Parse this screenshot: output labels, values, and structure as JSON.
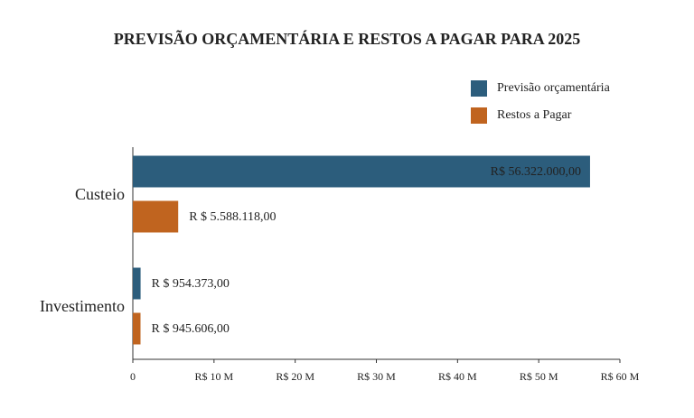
{
  "chart_data": {
    "type": "hbar",
    "title": "PREVISÃO ORÇAMENTÁRIA E RESTOS A PAGAR PARA 2025",
    "categories": [
      "Custeio",
      "Investimento"
    ],
    "series": [
      {
        "name": "Previsão orçamentária",
        "color": "#2c5d7c",
        "values": [
          56322000,
          954373
        ],
        "value_labels": [
          "R$ 56.322.000,00",
          "R $ 954.373,00"
        ]
      },
      {
        "name": "Restos a Pagar",
        "color": "#c0641f",
        "values": [
          5588118,
          945606
        ],
        "value_labels": [
          "R $ 5.588.118,00",
          "R $ 945.606,00"
        ]
      }
    ],
    "xlim": [
      0,
      60000000
    ],
    "xticks": [
      0,
      {
        "value": 10000000,
        "label": "R$ 10 M"
      },
      {
        "value": 20000000,
        "label": "R$ 20 M"
      },
      {
        "value": 30000000,
        "label": "R$ 30 M"
      },
      {
        "value": 40000000,
        "label": "R$ 40 M"
      },
      {
        "value": 50000000,
        "label": "R$ 50 M"
      },
      {
        "value": 60000000,
        "label": "R$ 60 M"
      }
    ],
    "legend": "top-right"
  }
}
